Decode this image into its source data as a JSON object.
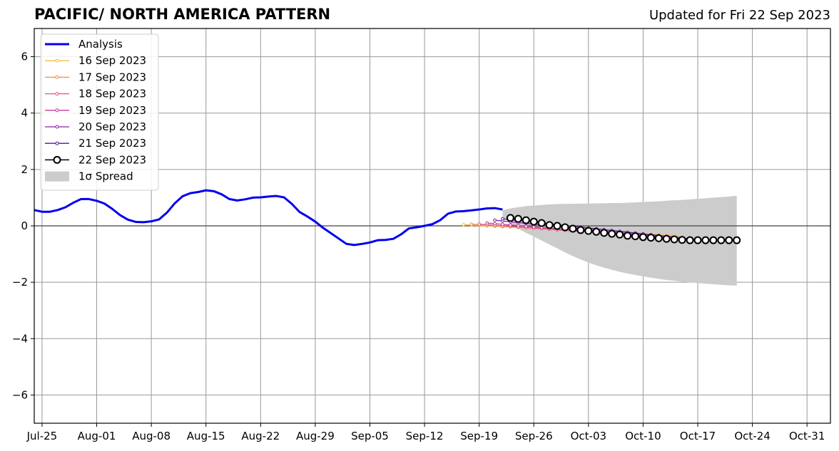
{
  "title": "PACIFIC/ NORTH AMERICA PATTERN",
  "subtitle": "Updated for Fri 22 Sep 2023",
  "chart_data": {
    "type": "line",
    "x_axis": {
      "ticks": [
        "Jul-25",
        "Aug-01",
        "Aug-08",
        "Aug-15",
        "Aug-22",
        "Aug-29",
        "Sep-05",
        "Sep-12",
        "Sep-19",
        "Sep-26",
        "Oct-03",
        "Oct-10",
        "Oct-17",
        "Oct-24",
        "Oct-31"
      ],
      "xlim": [
        "2023-07-24",
        "2023-11-03"
      ]
    },
    "y_axis": {
      "ticks": [
        "6",
        "4",
        "2",
        "0",
        "−2",
        "−4",
        "−6"
      ],
      "ylim": [
        -7,
        7
      ]
    },
    "grid": true,
    "legend_position": "upper-left",
    "legend": [
      {
        "label": "Analysis",
        "kind": "thick-line",
        "color": "#0000ee"
      },
      {
        "label": "16 Sep 2023",
        "kind": "marker-line",
        "color": "#f7b844"
      },
      {
        "label": "17 Sep 2023",
        "kind": "marker-line",
        "color": "#f28a4a"
      },
      {
        "label": "18 Sep 2023",
        "kind": "marker-line",
        "color": "#e2587a"
      },
      {
        "label": "19 Sep 2023",
        "kind": "marker-line",
        "color": "#c13b9a"
      },
      {
        "label": "20 Sep 2023",
        "kind": "marker-line",
        "color": "#8f1ba6"
      },
      {
        "label": "21 Sep 2023",
        "kind": "marker-line",
        "color": "#5a1399"
      },
      {
        "label": "22 Sep 2023",
        "kind": "open-circle-line",
        "color": "#000000"
      },
      {
        "label": "1σ Spread",
        "kind": "patch",
        "color": "#cccccc"
      }
    ],
    "analysis": {
      "name": "Analysis",
      "color": "#0000ee",
      "x": [
        "2023-07-24",
        "2023-07-25",
        "2023-07-26",
        "2023-07-27",
        "2023-07-28",
        "2023-07-29",
        "2023-07-30",
        "2023-07-31",
        "2023-08-01",
        "2023-08-02",
        "2023-08-03",
        "2023-08-04",
        "2023-08-05",
        "2023-08-06",
        "2023-08-07",
        "2023-08-08",
        "2023-08-09",
        "2023-08-10",
        "2023-08-11",
        "2023-08-12",
        "2023-08-13",
        "2023-08-14",
        "2023-08-15",
        "2023-08-16",
        "2023-08-17",
        "2023-08-18",
        "2023-08-19",
        "2023-08-20",
        "2023-08-21",
        "2023-08-22",
        "2023-08-23",
        "2023-08-24",
        "2023-08-25",
        "2023-08-26",
        "2023-08-27",
        "2023-08-28",
        "2023-08-29",
        "2023-08-30",
        "2023-08-31",
        "2023-09-01",
        "2023-09-02",
        "2023-09-03",
        "2023-09-04",
        "2023-09-05",
        "2023-09-06",
        "2023-09-07",
        "2023-09-08",
        "2023-09-09",
        "2023-09-10",
        "2023-09-11",
        "2023-09-12",
        "2023-09-13",
        "2023-09-14",
        "2023-09-15",
        "2023-09-16",
        "2023-09-17",
        "2023-09-18",
        "2023-09-19",
        "2023-09-20",
        "2023-09-21",
        "2023-09-22"
      ],
      "y": [
        0.56,
        0.5,
        0.5,
        0.56,
        0.66,
        0.82,
        0.95,
        0.95,
        0.89,
        0.79,
        0.6,
        0.38,
        0.22,
        0.14,
        0.13,
        0.16,
        0.23,
        0.47,
        0.8,
        1.05,
        1.16,
        1.2,
        1.26,
        1.23,
        1.12,
        0.95,
        0.9,
        0.94,
        1.0,
        1.01,
        1.04,
        1.06,
        1.01,
        0.78,
        0.49,
        0.33,
        0.15,
        -0.07,
        -0.26,
        -0.45,
        -0.64,
        -0.68,
        -0.64,
        -0.59,
        -0.51,
        -0.5,
        -0.46,
        -0.3,
        -0.09,
        -0.05,
        0.0,
        0.06,
        0.2,
        0.43,
        0.51,
        0.52,
        0.55,
        0.58,
        0.62,
        0.63,
        0.58
      ]
    },
    "forecasts": [
      {
        "name": "16 Sep 2023",
        "color": "#f7b844",
        "start": "2023-09-17",
        "y0": 0.04,
        "y1": -0.34,
        "days": 28
      },
      {
        "name": "17 Sep 2023",
        "color": "#f28a4a",
        "start": "2023-09-18",
        "y0": 0.06,
        "y1": -0.4,
        "days": 28
      },
      {
        "name": "18 Sep 2023",
        "color": "#e2587a",
        "start": "2023-09-19",
        "y0": 0.06,
        "y1": -0.48,
        "days": 28
      },
      {
        "name": "19 Sep 2023",
        "color": "#c13b9a",
        "start": "2023-09-20",
        "y0": 0.1,
        "y1": -0.52,
        "days": 28
      },
      {
        "name": "20 Sep 2023",
        "color": "#8f1ba6",
        "start": "2023-09-21",
        "y0": 0.2,
        "y1": -0.55,
        "days": 28
      },
      {
        "name": "21 Sep 2023",
        "color": "#5a1399",
        "start": "2023-09-22",
        "y0": 0.25,
        "y1": -0.55,
        "days": 28
      }
    ],
    "latest_forecast": {
      "name": "22 Sep 2023",
      "color": "#000000",
      "x_start": "2023-09-23",
      "y": [
        0.28,
        0.25,
        0.2,
        0.15,
        0.1,
        0.03,
        0.0,
        -0.05,
        -0.1,
        -0.15,
        -0.18,
        -0.21,
        -0.25,
        -0.28,
        -0.31,
        -0.35,
        -0.37,
        -0.4,
        -0.42,
        -0.44,
        -0.46,
        -0.48,
        -0.5,
        -0.51,
        -0.51,
        -0.51,
        -0.51,
        -0.51,
        -0.51,
        -0.51
      ]
    },
    "spread": {
      "label": "1σ Spread",
      "color": "#cccccc",
      "x_start": "2023-09-22",
      "x_end": "2023-10-22",
      "upper": [
        0.55,
        0.62,
        0.66,
        0.7,
        0.72,
        0.74,
        0.76,
        0.77,
        0.78,
        0.78,
        0.79,
        0.79,
        0.8,
        0.8,
        0.81,
        0.81,
        0.82,
        0.83,
        0.85,
        0.86,
        0.87,
        0.89,
        0.91,
        0.92,
        0.94,
        0.96,
        0.98,
        1.0,
        1.02,
        1.04,
        1.07
      ],
      "lower": [
        0.3,
        0.1,
        -0.1,
        -0.25,
        -0.38,
        -0.52,
        -0.66,
        -0.8,
        -0.94,
        -1.07,
        -1.19,
        -1.3,
        -1.4,
        -1.48,
        -1.56,
        -1.63,
        -1.69,
        -1.74,
        -1.79,
        -1.84,
        -1.88,
        -1.92,
        -1.95,
        -1.98,
        -2.01,
        -2.03,
        -2.05,
        -2.07,
        -2.09,
        -2.11,
        -2.12
      ]
    }
  }
}
